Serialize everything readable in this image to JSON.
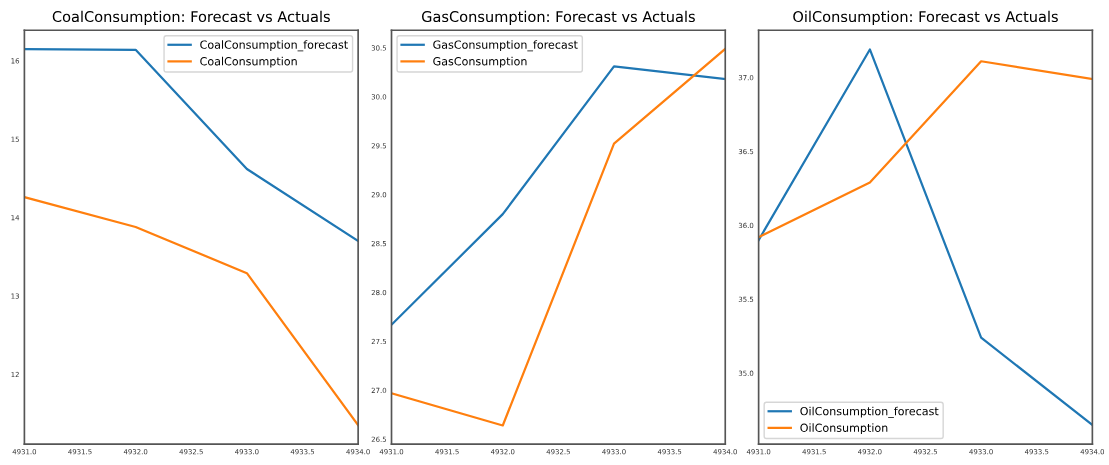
{
  "chart_data": [
    {
      "type": "line",
      "title": "CoalConsumption: Forecast vs Actuals",
      "x": [
        4931,
        4932,
        4933,
        4934
      ],
      "series": [
        {
          "name": "CoalConsumption_forecast",
          "color": "#1f77b4",
          "values": [
            16.15,
            16.14,
            14.62,
            13.7
          ]
        },
        {
          "name": "CoalConsumption",
          "color": "#ff7f0e",
          "values": [
            14.26,
            13.88,
            13.29,
            11.35
          ]
        }
      ],
      "xlim": [
        4931,
        4934
      ],
      "xticks": [
        {
          "value": 4931,
          "label": "4931.0"
        },
        {
          "value": 4931.5,
          "label": "4931.5"
        },
        {
          "value": 4932,
          "label": "4932.0"
        },
        {
          "value": 4932.5,
          "label": "4932.5"
        },
        {
          "value": 4933,
          "label": "4933.0"
        },
        {
          "value": 4933.5,
          "label": "4933.5"
        },
        {
          "value": 4934,
          "label": "4934.0"
        }
      ],
      "ylim": [
        11.11,
        16.39
      ],
      "yticks": [
        12,
        13,
        14,
        15,
        16
      ],
      "grid": false,
      "legend": "top right"
    },
    {
      "type": "line",
      "title": "GasConsumption: Forecast vs Actuals",
      "x": [
        4931,
        4932,
        4933,
        4934
      ],
      "series": [
        {
          "name": "GasConsumption_forecast",
          "color": "#1f77b4",
          "values": [
            27.67,
            28.8,
            30.31,
            30.18
          ]
        },
        {
          "name": "GasConsumption",
          "color": "#ff7f0e",
          "values": [
            26.97,
            26.64,
            29.52,
            30.49
          ]
        }
      ],
      "xlim": [
        4931,
        4934
      ],
      "xticks": [
        {
          "value": 4931,
          "label": "4931.0"
        },
        {
          "value": 4931.5,
          "label": "4931.5"
        },
        {
          "value": 4932,
          "label": "4932.0"
        },
        {
          "value": 4932.5,
          "label": "4932.5"
        },
        {
          "value": 4933,
          "label": "4933.0"
        },
        {
          "value": 4933.5,
          "label": "4933.5"
        },
        {
          "value": 4934,
          "label": "4934.0"
        }
      ],
      "ylim": [
        26.45,
        30.68
      ],
      "yticks": [
        26.5,
        {
          "value": 27,
          "label": "27.0"
        },
        27.5,
        {
          "value": 28,
          "label": "28.0"
        },
        28.5,
        {
          "value": 29,
          "label": "29.0"
        },
        29.5,
        {
          "value": 30,
          "label": "30.0"
        },
        30.5
      ],
      "grid": false,
      "legend": "top left"
    },
    {
      "type": "line",
      "title": "OilConsumption: Forecast vs Actuals",
      "x": [
        4931,
        4932,
        4933,
        4934
      ],
      "series": [
        {
          "name": "OilConsumption_forecast",
          "color": "#1f77b4",
          "values": [
            35.9,
            37.19,
            35.24,
            34.65
          ]
        },
        {
          "name": "OilConsumption",
          "color": "#ff7f0e",
          "values": [
            35.92,
            36.29,
            37.11,
            36.99
          ]
        }
      ],
      "xlim": [
        4931,
        4934
      ],
      "xticks": [
        {
          "value": 4931,
          "label": "4931.0"
        },
        {
          "value": 4931.5,
          "label": "4931.5"
        },
        {
          "value": 4932,
          "label": "4932.0"
        },
        {
          "value": 4932.5,
          "label": "4932.5"
        },
        {
          "value": 4933,
          "label": "4933.0"
        },
        {
          "value": 4933.5,
          "label": "4933.5"
        },
        {
          "value": 4934,
          "label": "4934.0"
        }
      ],
      "ylim": [
        34.52,
        37.32
      ],
      "yticks": [
        {
          "value": 35,
          "label": "35.0"
        },
        35.5,
        {
          "value": 36,
          "label": "36.0"
        },
        36.5,
        {
          "value": 37,
          "label": "37.0"
        }
      ],
      "grid": false,
      "legend": "bottom left"
    }
  ]
}
